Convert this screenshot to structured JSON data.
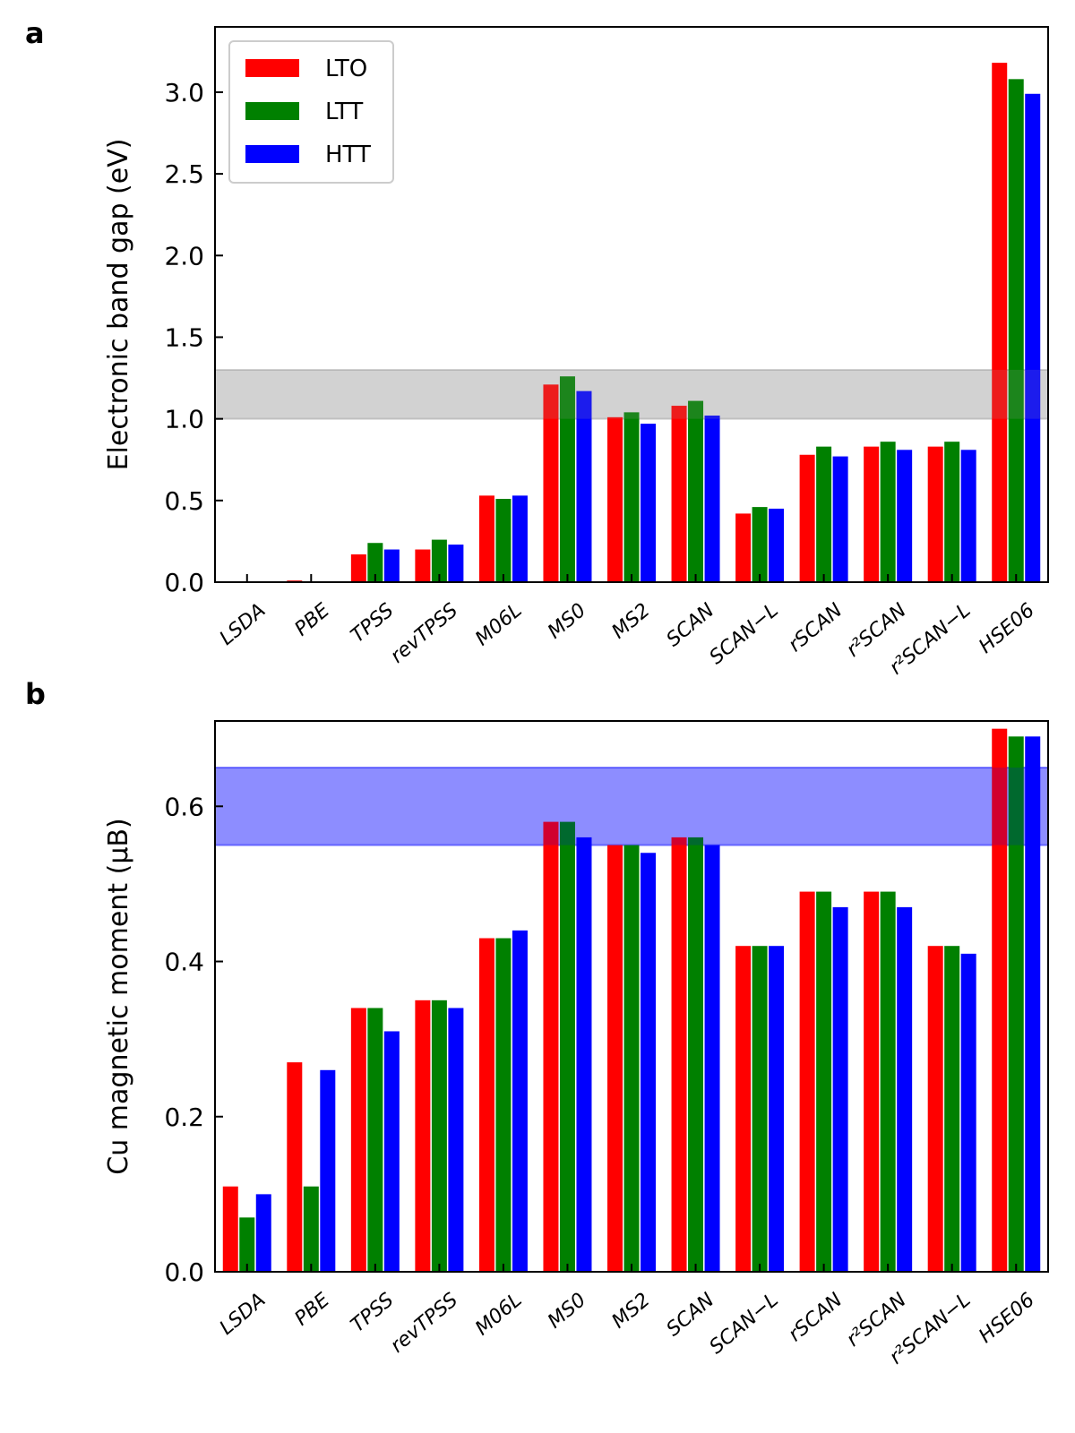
{
  "chart_data": [
    {
      "panel": "a",
      "type": "bar",
      "categories": [
        "LSDA",
        "PBE",
        "TPSS",
        "revTPSS",
        "M06L",
        "MS0",
        "MS2",
        "SCAN",
        "SCAN−L",
        "rSCAN",
        "r²SCAN",
        "r²SCAN−L",
        "HSE06"
      ],
      "series": [
        {
          "name": "LTO",
          "color": "#ff0000",
          "values": [
            0.0,
            0.01,
            0.17,
            0.2,
            0.53,
            1.21,
            1.01,
            1.08,
            0.42,
            0.78,
            0.83,
            0.83,
            3.18
          ]
        },
        {
          "name": "LTT",
          "color": "#008000",
          "values": [
            0.0,
            0.0,
            0.24,
            0.26,
            0.51,
            1.26,
            1.04,
            1.11,
            0.46,
            0.83,
            0.86,
            0.86,
            3.08
          ]
        },
        {
          "name": "HTT",
          "color": "#0000ff",
          "values": [
            0.0,
            0.0,
            0.2,
            0.23,
            0.53,
            1.17,
            0.97,
            1.02,
            0.45,
            0.77,
            0.81,
            0.81,
            2.99
          ]
        }
      ],
      "ylabel": "Electronic band gap (eV)",
      "xlabel": "",
      "ylim": [
        0,
        3.4
      ],
      "yticks": [
        "0.0",
        "0.5",
        "1.0",
        "1.5",
        "2.0",
        "2.5",
        "3.0"
      ],
      "shaded_band": {
        "from": 1.0,
        "to": 1.3,
        "color": "#999999"
      },
      "legend": {
        "position": "top-left"
      }
    },
    {
      "panel": "b",
      "type": "bar",
      "categories": [
        "LSDA",
        "PBE",
        "TPSS",
        "revTPSS",
        "M06L",
        "MS0",
        "MS2",
        "SCAN",
        "SCAN−L",
        "rSCAN",
        "r²SCAN",
        "r²SCAN−L",
        "HSE06"
      ],
      "series": [
        {
          "name": "LTO",
          "color": "#ff0000",
          "values": [
            0.11,
            0.27,
            0.34,
            0.35,
            0.43,
            0.58,
            0.55,
            0.56,
            0.42,
            0.49,
            0.49,
            0.42,
            0.7
          ]
        },
        {
          "name": "LTT",
          "color": "#008000",
          "values": [
            0.07,
            0.11,
            0.34,
            0.35,
            0.43,
            0.58,
            0.55,
            0.56,
            0.42,
            0.49,
            0.49,
            0.42,
            0.69
          ]
        },
        {
          "name": "HTT",
          "color": "#0000ff",
          "values": [
            0.1,
            0.26,
            0.31,
            0.34,
            0.44,
            0.56,
            0.54,
            0.55,
            0.42,
            0.47,
            0.47,
            0.41,
            0.69
          ]
        }
      ],
      "ylabel": "Cu magnetic moment (μB)",
      "xlabel": "",
      "ylim": [
        0,
        0.71
      ],
      "yticks": [
        "0.0",
        "0.2",
        "0.4",
        "0.6"
      ],
      "shaded_band": {
        "from": 0.55,
        "to": 0.65,
        "color": "#0000ff"
      }
    }
  ]
}
